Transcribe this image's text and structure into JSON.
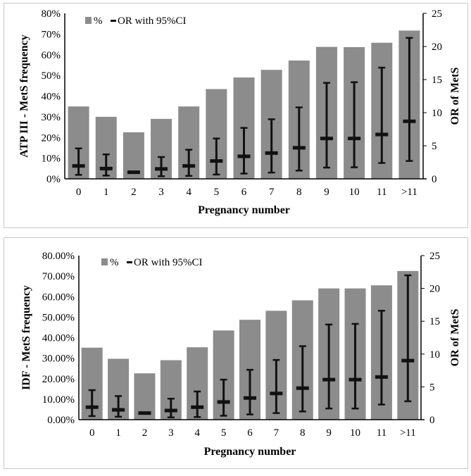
{
  "chart_data": [
    {
      "type": "bar",
      "title": "",
      "xlabel": "Pregnancy number",
      "ylabel": "ATP III - MetS frequency",
      "y2label": "OR of MetS",
      "categories": [
        "0",
        "1",
        "2",
        "3",
        "4",
        "5",
        "6",
        "7",
        "8",
        "9",
        "10",
        "11",
        ">11"
      ],
      "yticks": [
        "0%",
        "10%",
        "20%",
        "30%",
        "40%",
        "50%",
        "60%",
        "70%",
        "80%"
      ],
      "ylim": [
        0,
        80
      ],
      "y2ticks": [
        "0",
        "5",
        "10",
        "15",
        "20",
        "25"
      ],
      "y2lim": [
        0,
        25
      ],
      "legend": [
        "%",
        "OR with 95%CI"
      ],
      "legend_position": "top-left",
      "series": [
        {
          "name": "%",
          "type": "bar",
          "color": "#8c8c8c",
          "values": [
            35,
            30,
            22.5,
            29,
            35,
            43.4,
            49,
            52.7,
            57.2,
            63.8,
            63.7,
            65.8,
            71.7
          ]
        },
        {
          "name": "OR with 95%CI",
          "type": "errorbar",
          "axis": "right",
          "color": "#111111",
          "values": [
            1.95,
            1.55,
            1.0,
            1.5,
            1.95,
            2.7,
            3.4,
            3.9,
            4.7,
            6.1,
            6.1,
            6.7,
            8.7
          ],
          "lower": [
            0.6,
            0.5,
            1.0,
            0.4,
            0.45,
            0.65,
            0.8,
            0.95,
            1.25,
            1.7,
            1.75,
            2.4,
            2.7
          ],
          "upper": [
            4.6,
            3.7,
            1.0,
            3.3,
            4.4,
            6.1,
            7.7,
            9.0,
            10.8,
            14.5,
            14.6,
            16.8,
            21.3
          ]
        }
      ]
    },
    {
      "type": "bar",
      "title": "",
      "xlabel": "Pregnancy number",
      "ylabel": "IDF - MetS frequency",
      "y2label": "OR of MetS",
      "categories": [
        "0",
        "1",
        "2",
        "3",
        "4",
        "5",
        "6",
        "7",
        "8",
        "9",
        "10",
        "11",
        ">11"
      ],
      "yticks": [
        "0.00%",
        "10.00%",
        "20.00%",
        "30.00%",
        "40.00%",
        "50.00%",
        "60.00%",
        "70.00%",
        "80.00%"
      ],
      "ylim": [
        0,
        80
      ],
      "y2ticks": [
        "0",
        "5",
        "10",
        "15",
        "20",
        "25"
      ],
      "y2lim": [
        0,
        25
      ],
      "legend": [
        "%",
        "OR with 95%CI"
      ],
      "legend_position": "top-left",
      "series": [
        {
          "name": "%",
          "type": "bar",
          "color": "#8c8c8c",
          "values": [
            35.1,
            29.7,
            22.6,
            29,
            35.3,
            43.5,
            48.7,
            53.1,
            58.2,
            64,
            64,
            65.5,
            72.5
          ]
        },
        {
          "name": "OR with 95%CI",
          "type": "errorbar",
          "axis": "right",
          "color": "#111111",
          "values": [
            1.9,
            1.5,
            1.0,
            1.4,
            1.9,
            2.7,
            3.3,
            4.0,
            4.8,
            6.1,
            6.1,
            6.5,
            9.0
          ],
          "lower": [
            0.55,
            0.45,
            1.0,
            0.35,
            0.4,
            0.6,
            0.8,
            1.0,
            1.25,
            1.7,
            1.7,
            2.3,
            2.8
          ],
          "upper": [
            4.5,
            3.6,
            1.0,
            3.2,
            4.3,
            6.1,
            7.6,
            9.1,
            11.2,
            14.5,
            14.6,
            16.6,
            22.0
          ]
        }
      ]
    }
  ]
}
